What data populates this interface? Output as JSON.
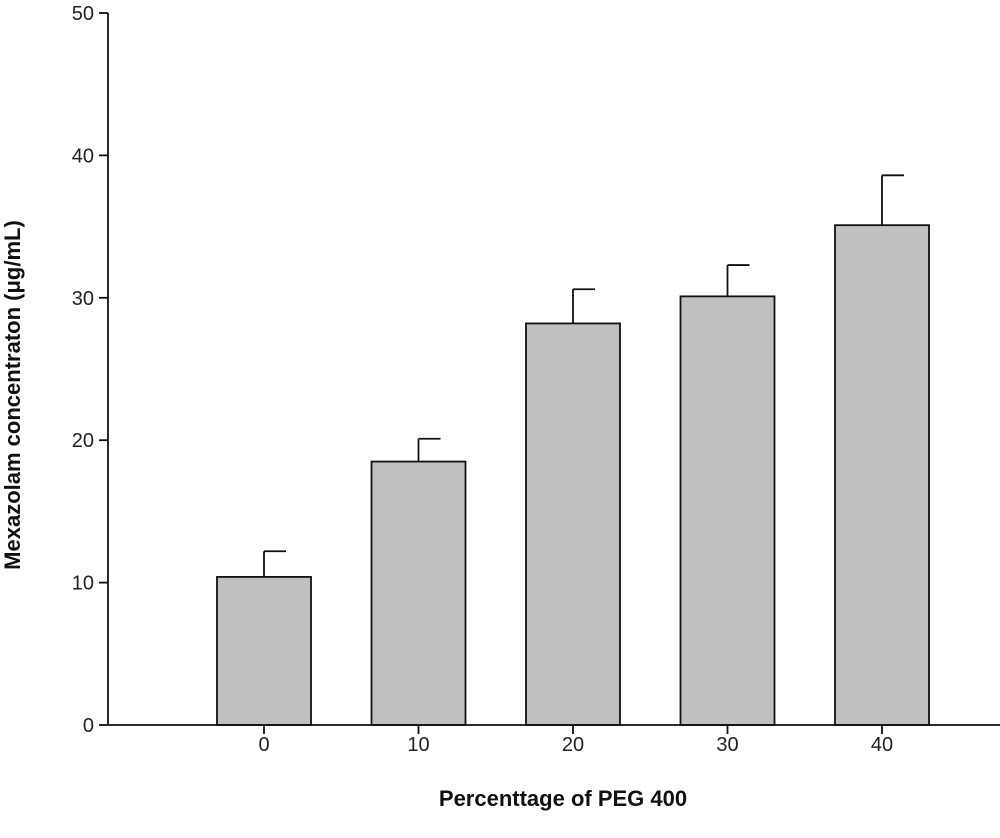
{
  "chart_data": {
    "type": "bar",
    "categories": [
      "0",
      "10",
      "20",
      "30",
      "40"
    ],
    "series": [
      {
        "values": [
          10.4,
          18.5,
          28.2,
          30.1,
          35.1
        ],
        "errors": [
          1.8,
          1.6,
          2.4,
          2.2,
          3.5
        ]
      }
    ],
    "xlabel": "Percenttage of PEG 400",
    "ylabel": "Mexazolam concentraton (μg/mL)",
    "ylim": [
      0,
      50
    ],
    "yticks": [
      0,
      10,
      20,
      30,
      40,
      50
    ],
    "grid": false,
    "bar_color": "#c0c0c0",
    "outline_color": "#111111"
  }
}
